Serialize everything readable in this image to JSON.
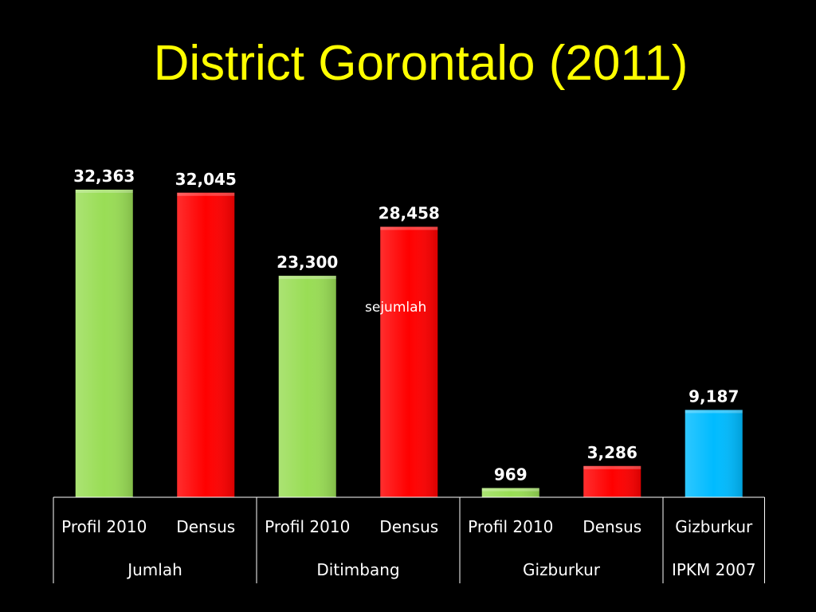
{
  "title": "District Gorontalo (2011)",
  "note": "sejumlah",
  "colors": {
    "background": "#000000",
    "title": "#ffff00",
    "Profil 2010": "#99dd55",
    "Densus": "#ff0000",
    "Gizburkur": "#00bbff"
  },
  "chart_data": {
    "type": "bar",
    "title": "District Gorontalo (2011)",
    "ylim": [
      0,
      32363
    ],
    "grid": false,
    "groups": [
      {
        "name": "Jumlah",
        "bars": [
          {
            "label": "Profil 2010",
            "value": 32363,
            "value_label": "32,363",
            "color": "#99dd55"
          },
          {
            "label": "Densus",
            "value": 32045,
            "value_label": "32,045",
            "color": "#ff0000"
          }
        ]
      },
      {
        "name": "Ditimbang",
        "bars": [
          {
            "label": "Profil 2010",
            "value": 23300,
            "value_label": "23,300",
            "color": "#99dd55"
          },
          {
            "label": "Densus",
            "value": 28458,
            "value_label": "28,458",
            "color": "#ff0000"
          }
        ]
      },
      {
        "name": "Gizburkur",
        "bars": [
          {
            "label": "Profil 2010",
            "value": 969,
            "value_label": "969",
            "color": "#99dd55"
          },
          {
            "label": "Densus",
            "value": 3286,
            "value_label": "3,286",
            "color": "#ff0000"
          }
        ]
      },
      {
        "name": "IPKM 2007",
        "bars": [
          {
            "label": "Gizburkur",
            "value": 9187,
            "value_label": "9,187",
            "color": "#00bbff"
          }
        ]
      }
    ]
  }
}
